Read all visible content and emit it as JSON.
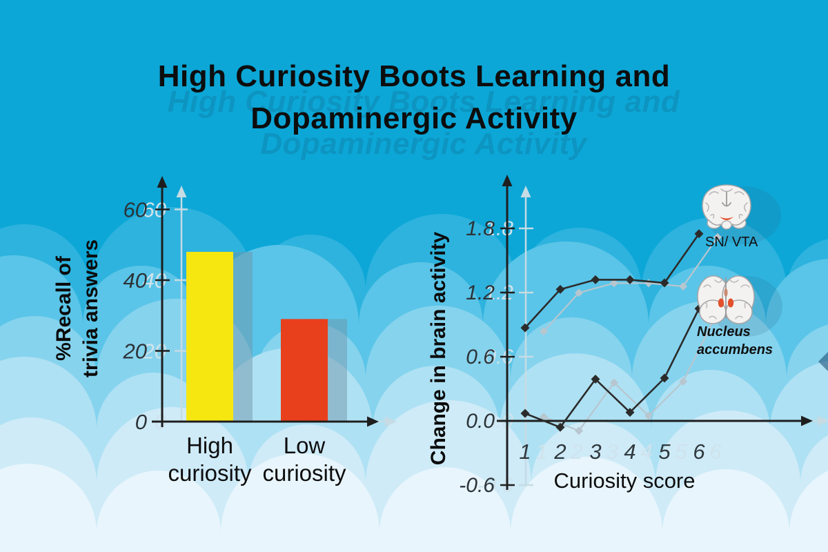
{
  "title": {
    "line1": "High Curiosity Boots Learning and",
    "line2": "Dopaminergic Activity"
  },
  "chart_data": [
    {
      "type": "bar",
      "ylabel": "%Recall of trivia answers",
      "ylabel_lines": [
        "%Recall of",
        "trivia answers"
      ],
      "categories": [
        "High curiosity",
        "Low curiosity"
      ],
      "category_lines": [
        [
          "High",
          "curiosity"
        ],
        [
          "Low",
          "curiosity"
        ]
      ],
      "values": [
        48,
        29
      ],
      "bar_colors": [
        "#f6e711",
        "#e8401c"
      ],
      "yticks": [
        0,
        20,
        40,
        60
      ],
      "ytick_labels": [
        "0",
        "20",
        "40",
        "60"
      ],
      "ylim": [
        0,
        66
      ],
      "grid": false
    },
    {
      "type": "line",
      "xlabel": "Curiosity score",
      "ylabel": "Change in brain activity",
      "x": [
        1,
        2,
        3,
        4,
        5,
        6
      ],
      "xtick_labels": [
        "1",
        "2",
        "3",
        "4",
        "5",
        "6"
      ],
      "yticks": [
        -0.6,
        0.0,
        0.6,
        1.2,
        1.8
      ],
      "ytick_labels": [
        "-0.6",
        "0.0",
        "0.6",
        "1.2",
        "1.8"
      ],
      "ylim": [
        -0.75,
        2.0
      ],
      "legend_position": "right-annotations",
      "series": [
        {
          "name": "SN/ VTA",
          "marker": "diamond",
          "color": "#2b2b2b",
          "values": [
            0.87,
            1.23,
            1.32,
            1.32,
            1.29,
            1.75
          ]
        },
        {
          "name": "Nucleus accumbens",
          "marker": "diamond",
          "color": "#2b2b2b",
          "values": [
            0.07,
            -0.06,
            0.39,
            0.08,
            0.4,
            1.05
          ]
        }
      ],
      "grid": false
    }
  ],
  "icons": {
    "sn_vta": "sn-vta-brain-icon",
    "nucleus_accumbens": "nucleus-accumbens-brain-icon"
  },
  "colors": {
    "sky": "#0ca7d7",
    "bar_high": "#f6e711",
    "bar_low": "#e8401c",
    "line": "#2b2b2b",
    "ghost": "#c3d2da",
    "title_text": "#0d0d0d",
    "brain_highlight": "#e2512d"
  }
}
